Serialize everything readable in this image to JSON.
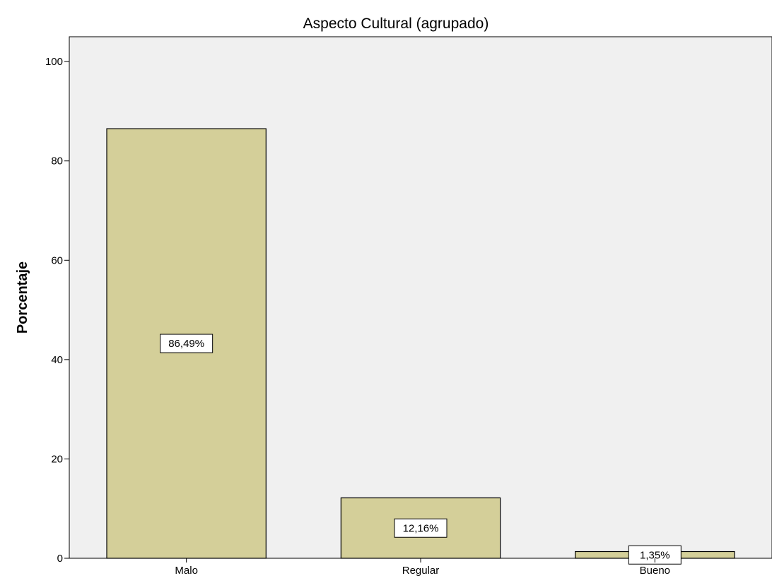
{
  "chart_data": {
    "type": "bar",
    "title": "Aspecto Cultural (agrupado)",
    "xlabel": "",
    "ylabel": "Porcentaje",
    "categories": [
      "Malo",
      "Regular",
      "Bueno"
    ],
    "values": [
      86.49,
      12.16,
      1.35
    ],
    "data_labels": [
      "86,49%",
      "12,16%",
      "1,35%"
    ],
    "ylim": [
      0,
      105
    ],
    "yticks": [
      0,
      20,
      40,
      60,
      80,
      100
    ],
    "grid": false,
    "legend": "none",
    "colors": {
      "bar_fill": "#d4cf99",
      "bar_stroke": "#000000",
      "plot_background": "#f0f0f0"
    }
  }
}
